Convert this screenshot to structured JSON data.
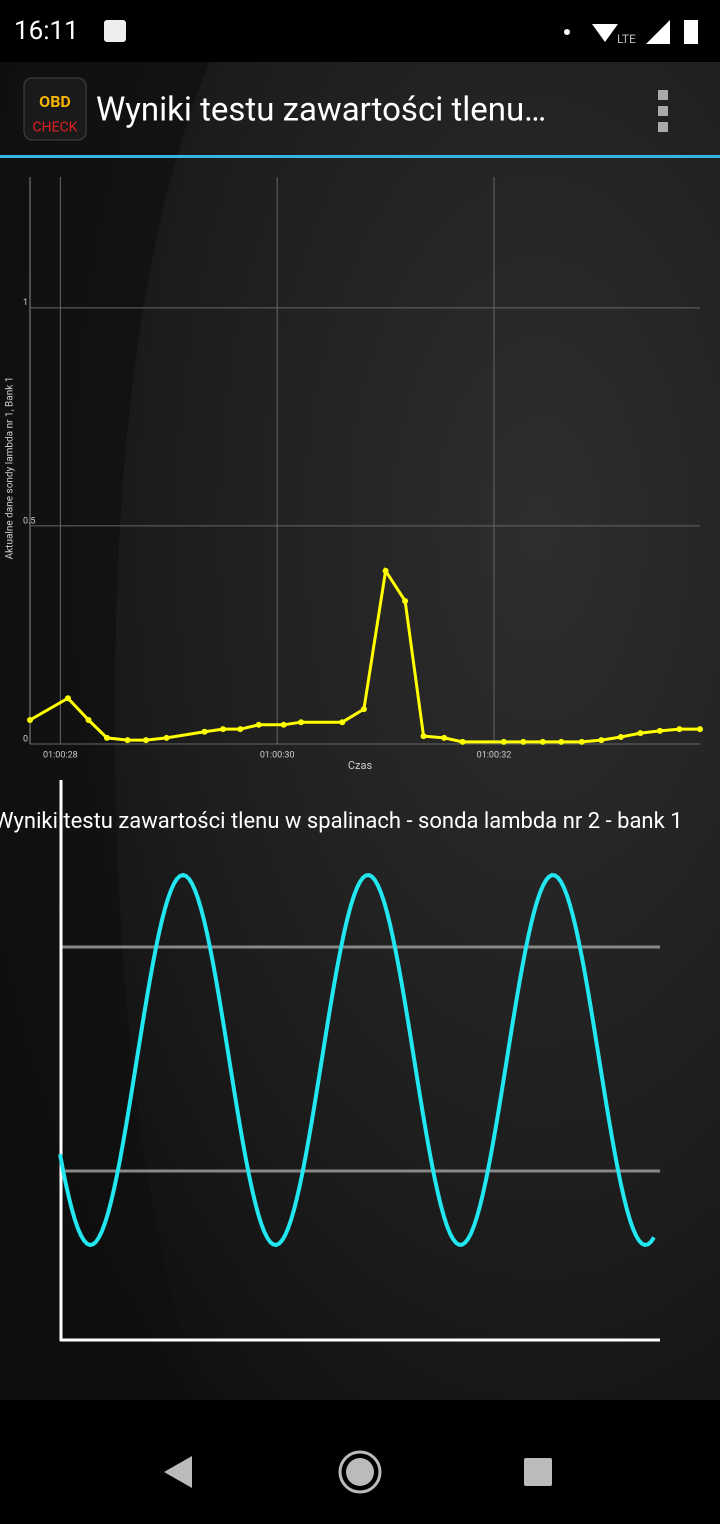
{
  "status_bar": {
    "time": "16:11",
    "network": "LTE"
  },
  "app_bar": {
    "title": "Wyniki testu zawartości tlenu…",
    "icon": {
      "top": "OBD",
      "bottom": "CHECK"
    }
  },
  "chart_data": [
    {
      "type": "line",
      "y_label": "Aktualne dane sondy lambda nr 1, Bank 1",
      "x_label": "Czas",
      "x": [
        27.72,
        28.07,
        28.26,
        28.43,
        28.62,
        28.79,
        28.98,
        29.33,
        29.5,
        29.66,
        29.83,
        30.06,
        30.22,
        30.6,
        30.8,
        31.0,
        31.18,
        31.35,
        31.54,
        31.71,
        32.09,
        32.27,
        32.45,
        32.62,
        32.81,
        32.99,
        33.17,
        33.35,
        33.53,
        33.71,
        33.9
      ],
      "values": [
        0.055,
        0.105,
        0.055,
        0.014,
        0.009,
        0.009,
        0.014,
        0.028,
        0.034,
        0.034,
        0.044,
        0.044,
        0.05,
        0.05,
        0.08,
        0.397,
        0.328,
        0.018,
        0.014,
        0.005,
        0.005,
        0.005,
        0.005,
        0.005,
        0.005,
        0.009,
        0.016,
        0.025,
        0.03,
        0.034,
        0.034
      ],
      "color": "#ffff00",
      "xlim": [
        27.72,
        33.9
      ],
      "xticks": [
        {
          "value": 28,
          "label": "01:00:28"
        },
        {
          "value": 30,
          "label": "01:00:30"
        },
        {
          "value": 32,
          "label": "01:00:32"
        }
      ],
      "ylim": [
        0,
        1.3
      ],
      "yticks": [
        0,
        0.5,
        1
      ],
      "grid": true
    },
    {
      "type": "illustration",
      "title": "Wyniki testu zawartości tlenu w spalinach - sonda lambda nr 2 - bank 1"
    }
  ]
}
